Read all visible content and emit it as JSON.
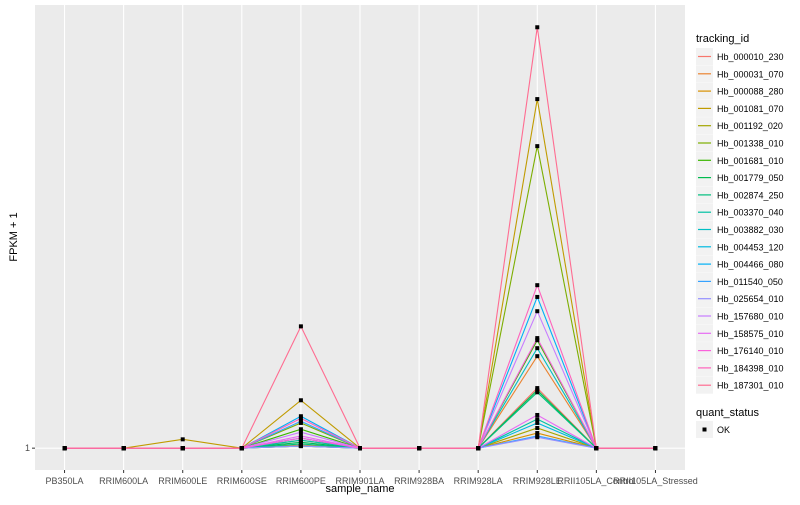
{
  "chart_data": {
    "type": "line",
    "xlabel": "sample_name",
    "ylabel": "FPKM + 1",
    "categories": [
      "PB350LA",
      "RRIM600LA",
      "RRIM600LE",
      "RRIM600SE",
      "RRIM600PE",
      "RRIM901LA",
      "RRIM928BA",
      "RRIM928LA",
      "RRIM928LE",
      "RRII105LA_Control",
      "RRII105LA_Stressed"
    ],
    "y_ticks": [
      1
    ],
    "ylim": [
      0.48,
      11.55
    ],
    "grid": true,
    "legend_position": "right",
    "legend_title": "tracking_id",
    "status_legend_title": "quant_status",
    "status_legend_items": [
      "OK"
    ],
    "series": [
      {
        "name": "Hb_000010_230",
        "color": "#F8766D",
        "values": [
          1,
          1,
          1,
          1,
          1.19,
          1,
          1,
          1,
          2.43,
          1,
          1
        ]
      },
      {
        "name": "Hb_000031_070",
        "color": "#EA8331",
        "values": [
          1,
          1,
          1,
          1,
          1.07,
          1,
          1,
          1,
          3.19,
          1,
          1
        ]
      },
      {
        "name": "Hb_000088_280",
        "color": "#D89000",
        "values": [
          1,
          1,
          1,
          1,
          1.05,
          1,
          1,
          1,
          1.36,
          1,
          1
        ]
      },
      {
        "name": "Hb_001081_070",
        "color": "#C09B00",
        "values": [
          1,
          1,
          1.21,
          1,
          2.14,
          1,
          1,
          1,
          9.31,
          1,
          1
        ]
      },
      {
        "name": "Hb_001192_020",
        "color": "#A3A500",
        "values": [
          1,
          1,
          1,
          1,
          1.05,
          1,
          1,
          1,
          1.48,
          1,
          1
        ]
      },
      {
        "name": "Hb_001338_010",
        "color": "#7CAE00",
        "values": [
          1,
          1,
          1,
          1,
          1.6,
          1,
          1,
          1,
          8.19,
          1,
          1
        ]
      },
      {
        "name": "Hb_001681_010",
        "color": "#39B600",
        "values": [
          1,
          1,
          1,
          1,
          1.45,
          1,
          1,
          1,
          3.57,
          1,
          1
        ]
      },
      {
        "name": "Hb_001779_050",
        "color": "#00BB4E",
        "values": [
          1,
          1,
          1,
          1,
          1.14,
          1,
          1,
          1,
          2.38,
          1,
          1
        ]
      },
      {
        "name": "Hb_002874_250",
        "color": "#00BF7D",
        "values": [
          1,
          1,
          1,
          1,
          1.1,
          1,
          1,
          1,
          2.33,
          1,
          1
        ]
      },
      {
        "name": "Hb_003370_040",
        "color": "#00C1A3",
        "values": [
          1,
          1,
          1,
          1,
          1.19,
          1,
          1,
          1,
          1.69,
          1,
          1
        ]
      },
      {
        "name": "Hb_003882_030",
        "color": "#00BFC4",
        "values": [
          1,
          1,
          1,
          1,
          1.24,
          1,
          1,
          1,
          3.38,
          1,
          1
        ]
      },
      {
        "name": "Hb_004453_120",
        "color": "#00BAE0",
        "values": [
          1,
          1,
          1,
          1,
          1.05,
          1,
          1,
          1,
          1.6,
          1,
          1
        ]
      },
      {
        "name": "Hb_004466_080",
        "color": "#00B0F6",
        "values": [
          1,
          1,
          1,
          1,
          1.76,
          1,
          1,
          1,
          4.6,
          1,
          1
        ]
      },
      {
        "name": "Hb_011540_050",
        "color": "#35A2FF",
        "values": [
          1,
          1,
          1,
          1,
          1.64,
          1,
          1,
          1,
          1.29,
          1,
          1
        ]
      },
      {
        "name": "Hb_025654_010",
        "color": "#9590FF",
        "values": [
          1,
          1,
          1,
          1,
          1.05,
          1,
          1,
          1,
          1.26,
          1,
          1
        ]
      },
      {
        "name": "Hb_157680_010",
        "color": "#C77CFF",
        "values": [
          1,
          1,
          1,
          1,
          1.38,
          1,
          1,
          1,
          4.26,
          1,
          1
        ]
      },
      {
        "name": "Hb_158575_010",
        "color": "#E76BF3",
        "values": [
          1,
          1,
          1,
          1,
          1.29,
          1,
          1,
          1,
          1.79,
          1,
          1
        ]
      },
      {
        "name": "Hb_176140_010",
        "color": "#FA62DB",
        "values": [
          1,
          1,
          1,
          1,
          1.24,
          1,
          1,
          1,
          3.62,
          1,
          1
        ]
      },
      {
        "name": "Hb_184398_010",
        "color": "#FF62BC",
        "values": [
          1,
          1,
          1,
          1,
          1.71,
          1,
          1,
          1,
          4.88,
          1,
          1
        ]
      },
      {
        "name": "Hb_187301_010",
        "color": "#FF6C91",
        "values": [
          1,
          1,
          1,
          1,
          3.9,
          1,
          1,
          1,
          11.02,
          1,
          1
        ]
      }
    ]
  }
}
